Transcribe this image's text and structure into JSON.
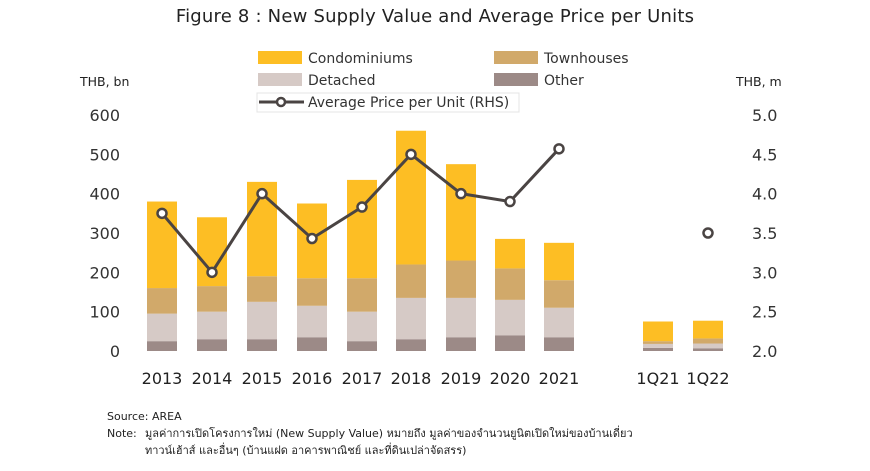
{
  "chart_data": {
    "type": "bar",
    "title": "Figure 8 : New Supply Value and Average Price per Units",
    "ylabel_left": "THB, bn",
    "ylabel_right": "THB, m",
    "ylim_left": [
      0,
      600
    ],
    "ylim_right": [
      2.0,
      5.0
    ],
    "left_ticks": [
      "0",
      "100",
      "200",
      "300",
      "400",
      "500",
      "600"
    ],
    "right_ticks": [
      "2.0",
      "2.5",
      "3.0",
      "3.5",
      "4.0",
      "4.5",
      "5.0"
    ],
    "categories": [
      "2013",
      "2014",
      "2015",
      "2016",
      "2017",
      "2018",
      "2019",
      "2020",
      "2021",
      "1Q21",
      "1Q22"
    ],
    "stacked": true,
    "series": [
      {
        "name": "Other",
        "color": "#9c8a87",
        "values": [
          25,
          30,
          30,
          35,
          25,
          30,
          35,
          40,
          35,
          8,
          7
        ]
      },
      {
        "name": "Detached",
        "color": "#d6cac6",
        "values": [
          70,
          70,
          95,
          80,
          75,
          105,
          100,
          90,
          75,
          10,
          12
        ]
      },
      {
        "name": "Townhouses",
        "color": "#d1a96a",
        "values": [
          65,
          65,
          65,
          70,
          85,
          85,
          95,
          80,
          70,
          7,
          13
        ]
      },
      {
        "name": "Condominiums",
        "color": "#fdbe24",
        "values": [
          220,
          175,
          240,
          190,
          250,
          340,
          245,
          75,
          95,
          50,
          45
        ]
      }
    ],
    "line_series": {
      "name": "Average Price per Unit (RHS)",
      "color": "#4a4443",
      "values": [
        3.75,
        3.0,
        4.0,
        3.43,
        3.83,
        4.5,
        4.0,
        3.9,
        4.57,
        null,
        3.5
      ]
    },
    "legend": {
      "placement": "top-center",
      "order": [
        "Condominiums",
        "Townhouses",
        "Detached",
        "Other",
        "Average Price per Unit (RHS)"
      ]
    },
    "grid": false
  },
  "notes": {
    "source": "Source: AREA",
    "note_label": "Note:",
    "note_line1": "มูลค่าการเปิดโครงการใหม่ (New Supply Value) หมายถึง มูลค่าของจำนวนยูนิตเปิดใหม่ของบ้านเดี่ยว",
    "note_line2": "ทาวน์เฮ้าส์ และอื่นๆ (บ้านแฝด อาคารพาณิชย์ และที่ดินเปล่าจัดสรร)"
  }
}
